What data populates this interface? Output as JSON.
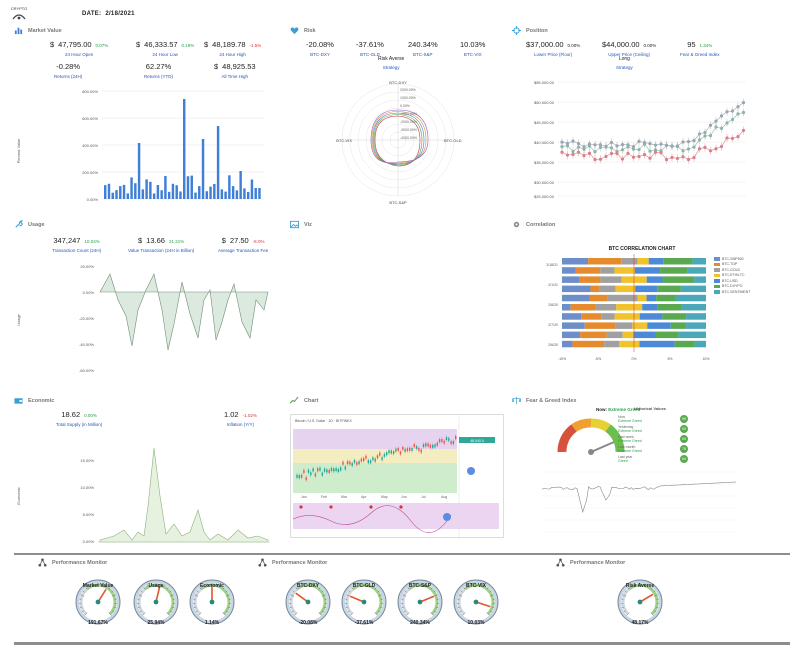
{
  "app": {
    "logo_text": "CRYPTO",
    "date_label": "DATE:",
    "date_value": "2/18/2021"
  },
  "market_value": {
    "title": "Market Value",
    "kpis": [
      {
        "prefix": "$",
        "value": "47,795.00",
        "change": "0.07%",
        "label": "24 Hour Open",
        "dir": "pos"
      },
      {
        "prefix": "$",
        "value": "46,333.57",
        "change": "0.19%",
        "label": "24 Hour Low",
        "dir": "pos"
      },
      {
        "prefix": "$",
        "value": "48,189.78",
        "change": "-1.5%",
        "label": "24 Hour High",
        "dir": "neg"
      },
      {
        "prefix": "",
        "value": "-0.28%",
        "change": "",
        "label": "Returns (24H)",
        "dir": "neg"
      },
      {
        "prefix": "",
        "value": "62.27%",
        "change": "",
        "label": "Returns (YTD)",
        "dir": "pos"
      },
      {
        "prefix": "$",
        "value": "48,925.53",
        "change": "",
        "label": "All Time High",
        "dir": "none"
      }
    ],
    "ylabel": "Percent Value",
    "yticks": [
      "800.00%",
      "600.00%",
      "400.00%",
      "200.00%",
      "0.00%"
    ]
  },
  "risk": {
    "title": "Risk",
    "kpis": [
      {
        "value": "-20.08%",
        "label": "BTC-DXY",
        "dir": "neg"
      },
      {
        "value": "-37.61%",
        "label": "BTC-GLD",
        "dir": "neg"
      },
      {
        "value": "240.34%",
        "label": "BTC-S&P",
        "dir": "pos"
      },
      {
        "value": "10.03%",
        "label": "BTC-VIX",
        "dir": "pos"
      }
    ],
    "mode_label": "Risk Averse",
    "mode_link": "Strategy",
    "radar_axes": [
      "BTC-DXY",
      "BTC-GLD",
      "BTC-S&P",
      "BTC-VIX"
    ],
    "radar_ticks": [
      "2000.00%",
      "1000.00%",
      "0.00%",
      "-1000.00%",
      "-2000.00%",
      "-3000.00%",
      "-4000.00%",
      "-5000.00%"
    ]
  },
  "position": {
    "title": "Position",
    "kpis": [
      {
        "value": "$37,000.00",
        "change": "0.00%",
        "label": "Lower Price (Floor)"
      },
      {
        "value": "$44,000.00",
        "change": "0.00%",
        "label": "Upper Price (Ceiling)"
      },
      {
        "value": "95",
        "change": "1.34%",
        "label": "Fear & Greed Index"
      }
    ],
    "signal": "Long",
    "signal_link": "Strategy",
    "yticks": [
      "$55,000.00",
      "$50,000.00",
      "$45,000.00",
      "$40,000.00",
      "$35,000.00",
      "$30,000.00",
      "$25,000.00"
    ]
  },
  "usage": {
    "title": "Usage",
    "kpis": [
      {
        "prefix": "",
        "value": "347,247",
        "change": "10.04%",
        "label": "Transaction Count (24H)",
        "dir": "pos"
      },
      {
        "prefix": "$",
        "value": "13.66",
        "change": "21.21%",
        "label": "Value Transaction (24H in Billion)",
        "dir": "pos"
      },
      {
        "prefix": "$",
        "value": "27.50",
        "change": "-8.0%",
        "label": "Average Transaction Fee",
        "dir": "neg"
      }
    ],
    "ylabel": "Usage",
    "yticks": [
      "20.00%",
      "0.00%",
      "-20.00%",
      "-40.00%",
      "-60.00%"
    ]
  },
  "viz": {
    "title": "Viz"
  },
  "correlation": {
    "title": "Correlation",
    "chart_title": "BTC CORRELATION CHART",
    "rows": [
      "2/18/21",
      "2/1/21",
      "2/8/20",
      "2/7/20",
      "2/6/20"
    ],
    "xticks": [
      "-10%",
      "-5%",
      "0%",
      "5%",
      "10%"
    ],
    "legend": [
      {
        "name": "BTC-SMP500",
        "color": "#6c8fc9"
      },
      {
        "name": "BTC-TOP",
        "color": "#e68a2e"
      },
      {
        "name": "BTC-GOLD",
        "color": "#a0a0a0"
      },
      {
        "name": "BTC-ETH/LTC",
        "color": "#f0c22b"
      },
      {
        "name": "BTC-USD",
        "color": "#4c8ad8"
      },
      {
        "name": "BTC-DXYPO",
        "color": "#5aa84f"
      },
      {
        "name": "BTC-SENTIMENT",
        "color": "#4aa8b8"
      }
    ]
  },
  "economic": {
    "title": "Economic",
    "kpis": [
      {
        "value": "18.62",
        "change": "0.00%",
        "label": "Total Supply (in Million)",
        "dir": "pos"
      },
      {
        "value": "1.02",
        "change": "-1.02%",
        "label": "Inflation (Y/Y)",
        "dir": "neg"
      }
    ],
    "ylabel": "Economic",
    "yticks": [
      "15.00%",
      "10.00%",
      "5.00%",
      "0.00%"
    ]
  },
  "chart": {
    "title": "Chart",
    "symbol_text": "Bitcoin / U.S. Dollar · 1D · BITFINEX",
    "price_label": "48,040.0",
    "xticks": [
      "Jan",
      "Feb",
      "Mar",
      "Apr",
      "May",
      "Jun",
      "Jul",
      "Aug"
    ]
  },
  "fear_greed": {
    "title": "Fear & Greed Index",
    "now_label": "Now:",
    "now_value": "Extreme Greed",
    "hist_title": "Historical Values",
    "history": [
      {
        "label": "Now",
        "sub": "Extreme Greed",
        "value": "95"
      },
      {
        "label": "Yesterday",
        "sub": "Extreme Greed",
        "value": "93"
      },
      {
        "label": "Last week",
        "sub": "Extreme Greed",
        "value": "94"
      },
      {
        "label": "Last month",
        "sub": "Extreme Greed",
        "value": "78"
      },
      {
        "label": "Last year",
        "sub": "Greed",
        "value": "64"
      }
    ]
  },
  "performance": [
    {
      "title": "Performance Monitor",
      "gauges": [
        {
          "name": "Market Value",
          "value": "191.67%",
          "level": 0.62
        },
        {
          "name": "Usage",
          "value": "25.94%",
          "level": 0.55
        },
        {
          "name": "Economic",
          "value": "1.14%",
          "level": 0.5
        }
      ]
    },
    {
      "title": "Performance Monitor",
      "gauges": [
        {
          "name": "BTC-DXY",
          "value": "-20.08%",
          "level": 0.3
        },
        {
          "name": "BTC-GLD",
          "value": "-37.61%",
          "level": 0.25
        },
        {
          "name": "BTC-S&P",
          "value": "240.34%",
          "level": 0.75
        },
        {
          "name": "BTC-VIX",
          "value": "10.03%",
          "level": 0.9
        }
      ]
    },
    {
      "title": "Performance Monitor",
      "gauges": [
        {
          "name": "Risk Averse",
          "value": "48.17%",
          "level": 0.72
        }
      ]
    }
  ],
  "colors": {
    "accent_blue": "#3f7fd6",
    "pos": "#2a9d4a",
    "neg": "#d6333b",
    "gauge_green": "#5aa84f"
  },
  "icons": {
    "market_value": "bar-chart-icon",
    "risk": "heart-icon",
    "position": "crosshair-icon",
    "usage": "wrench-icon",
    "viz": "image-icon",
    "correlation": "gear-icon",
    "economic": "wallet-icon",
    "chart": "trend-icon",
    "fear_greed": "scale-icon",
    "performance": "network-icon"
  }
}
